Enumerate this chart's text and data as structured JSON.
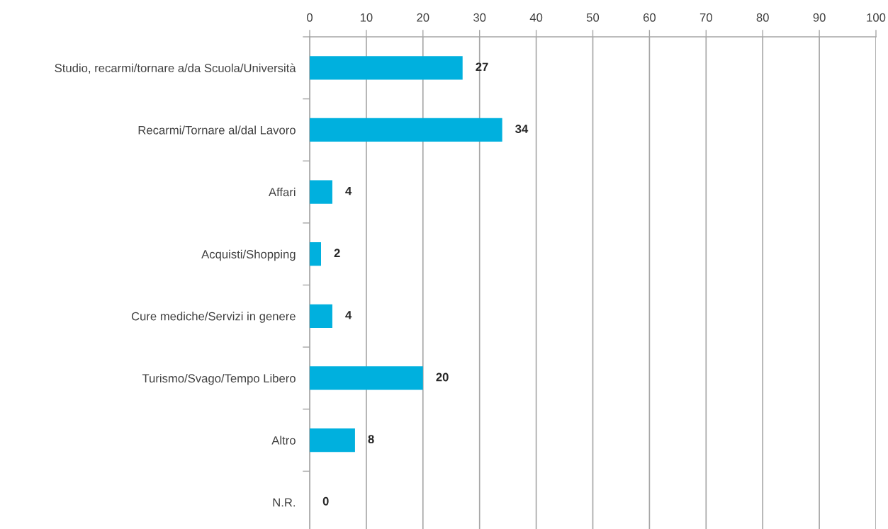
{
  "chart_data": {
    "type": "bar",
    "orientation": "horizontal",
    "categories": [
      "Studio, recarmi/tornare a/da Scuola/Università",
      "Recarmi/Tornare al/dal Lavoro",
      "Affari",
      "Acquisti/Shopping",
      "Cure mediche/Servizi in genere",
      "Turismo/Svago/Tempo Libero",
      "Altro",
      "N.R."
    ],
    "values": [
      27,
      34,
      4,
      2,
      4,
      20,
      8,
      0
    ],
    "color": "#00b0de",
    "xlim": [
      0,
      100
    ],
    "xticks": [
      0,
      10,
      20,
      30,
      40,
      50,
      60,
      70,
      80,
      90,
      100
    ],
    "grid": "x",
    "data_labels": true
  }
}
